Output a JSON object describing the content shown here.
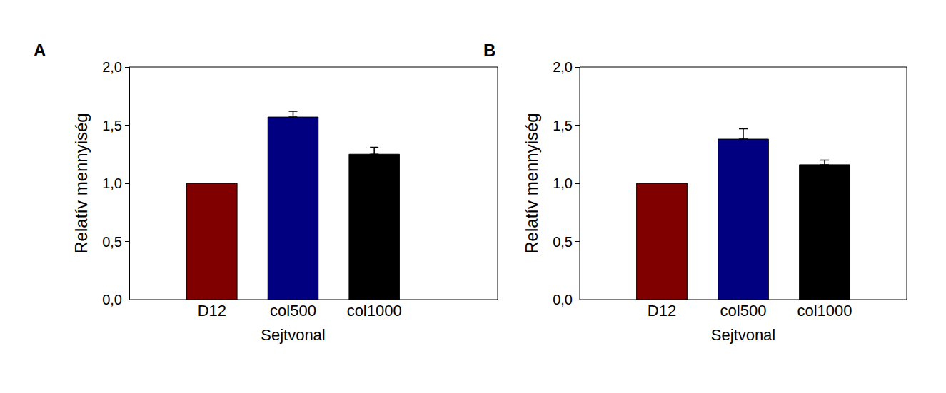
{
  "chart_data": [
    {
      "type": "bar",
      "title": "A",
      "x_label": "Sejtvonal",
      "y_label": "Relatív mennyiség",
      "categories": [
        "D12",
        "col500",
        "col1000"
      ],
      "values": [
        1.0,
        1.57,
        1.25
      ],
      "error": [
        null,
        0.05,
        0.06
      ],
      "colors": [
        "#800000",
        "#000080",
        "#000000"
      ],
      "ylim": [
        0,
        2
      ],
      "yticks": [
        {
          "value": 0,
          "label": "0,0"
        },
        {
          "value": 0.5,
          "label": "0,5"
        },
        {
          "value": 1,
          "label": "1,0"
        },
        {
          "value": 1.5,
          "label": "1,5"
        },
        {
          "value": 2,
          "label": "2,0"
        }
      ],
      "grid": false
    },
    {
      "type": "bar",
      "title": "B",
      "x_label": "Sejtvonal",
      "y_label": "Relatív mennyiség",
      "categories": [
        "D12",
        "col500",
        "col1000"
      ],
      "values": [
        1.0,
        1.38,
        1.16
      ],
      "error": [
        null,
        0.09,
        0.04
      ],
      "colors": [
        "#800000",
        "#000080",
        "#000000"
      ],
      "ylim": [
        0,
        2
      ],
      "yticks": [
        {
          "value": 0,
          "label": "0,0"
        },
        {
          "value": 0.5,
          "label": "0,5"
        },
        {
          "value": 1,
          "label": "1,0"
        },
        {
          "value": 1.5,
          "label": "1,5"
        },
        {
          "value": 2,
          "label": "2,0"
        }
      ],
      "grid": false
    }
  ]
}
